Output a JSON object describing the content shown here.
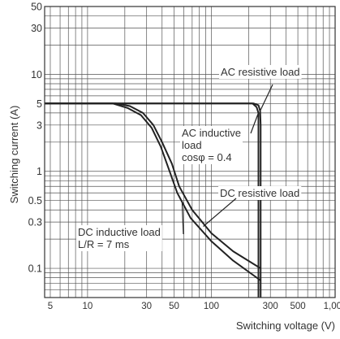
{
  "chart_data": {
    "type": "line",
    "xlabel": "Switching voltage (V)",
    "ylabel": "Switching current (A)",
    "x_scale": "log",
    "y_scale": "log",
    "xlim": [
      4.5,
      1000
    ],
    "ylim": [
      0.05,
      50
    ],
    "x_ticks": [
      {
        "value": 5,
        "label": "5"
      },
      {
        "value": 10,
        "label": "10"
      },
      {
        "value": 30,
        "label": "30"
      },
      {
        "value": 50,
        "label": "50"
      },
      {
        "value": 100,
        "label": "100"
      },
      {
        "value": 300,
        "label": "300"
      },
      {
        "value": 500,
        "label": "500"
      },
      {
        "value": 1000,
        "label": "1,000"
      }
    ],
    "y_ticks": [
      {
        "value": 0.1,
        "label": "0.1"
      },
      {
        "value": 0.3,
        "label": "0.3"
      },
      {
        "value": 0.5,
        "label": "0.5"
      },
      {
        "value": 1,
        "label": "1"
      },
      {
        "value": 3,
        "label": "3"
      },
      {
        "value": 5,
        "label": "5"
      },
      {
        "value": 10,
        "label": "10"
      },
      {
        "value": 30,
        "label": "30"
      },
      {
        "value": 50,
        "label": "50"
      }
    ],
    "grid": true,
    "series": [
      {
        "name": "AC resistive load",
        "points": [
          [
            4.5,
            5
          ],
          [
            220,
            5
          ],
          [
            240,
            4.8
          ],
          [
            248,
            4.2
          ],
          [
            250,
            3
          ],
          [
            250,
            0.05
          ]
        ]
      },
      {
        "name": "AC inductive load cosφ = 0.4",
        "points": [
          [
            4.5,
            5
          ],
          [
            215,
            5
          ],
          [
            232,
            4.6
          ],
          [
            240,
            4.0
          ],
          [
            240,
            0.05
          ]
        ]
      },
      {
        "name": "DC resistive load",
        "points": [
          [
            4.5,
            5
          ],
          [
            17,
            5
          ],
          [
            22,
            4.7
          ],
          [
            28,
            4
          ],
          [
            34,
            3
          ],
          [
            40,
            2
          ],
          [
            48,
            1.2
          ],
          [
            55,
            0.7
          ],
          [
            70,
            0.4
          ],
          [
            100,
            0.23
          ],
          [
            150,
            0.15
          ],
          [
            250,
            0.1
          ]
        ]
      },
      {
        "name": "DC inductive load L/R = 7 ms",
        "points": [
          [
            4.5,
            5
          ],
          [
            16,
            5
          ],
          [
            21,
            4.5
          ],
          [
            27,
            3.8
          ],
          [
            33,
            2.8
          ],
          [
            39,
            1.8
          ],
          [
            46,
            1.0
          ],
          [
            53,
            0.6
          ],
          [
            68,
            0.33
          ],
          [
            100,
            0.19
          ],
          [
            150,
            0.12
          ],
          [
            250,
            0.075
          ]
        ]
      }
    ],
    "annotations": [
      {
        "id": "ac-resistive",
        "lines": [
          "AC resistive load"
        ]
      },
      {
        "id": "ac-inductive",
        "lines": [
          "AC inductive",
          "load",
          "cosφ = 0.4"
        ]
      },
      {
        "id": "dc-resistive",
        "lines": [
          "DC resistive load"
        ]
      },
      {
        "id": "dc-inductive",
        "lines": [
          "DC inductive load",
          "L/R = 7 ms"
        ]
      }
    ]
  }
}
